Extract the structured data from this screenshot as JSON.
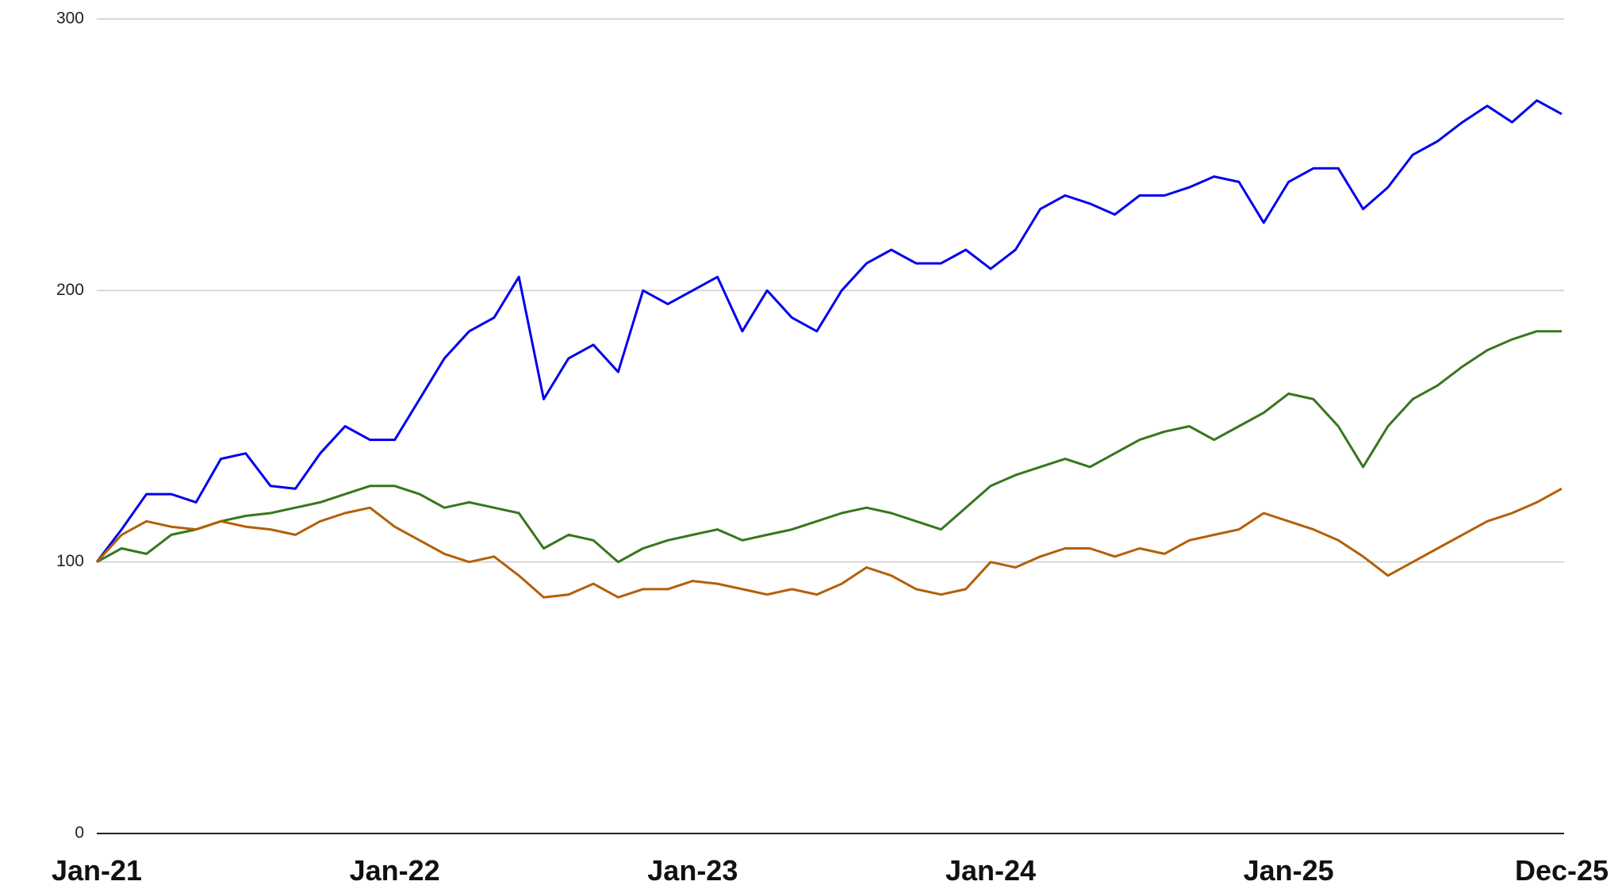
{
  "chart_data": {
    "type": "line",
    "categories": [
      "Jan-21",
      null,
      null,
      null,
      null,
      null,
      null,
      null,
      null,
      null,
      null,
      null,
      "Jan-22",
      null,
      null,
      null,
      null,
      null,
      null,
      null,
      null,
      null,
      null,
      null,
      "Jan-23",
      null,
      null,
      null,
      null,
      null,
      null,
      null,
      null,
      null,
      null,
      null,
      "Jan-24",
      null,
      null,
      null,
      null,
      null,
      null,
      null,
      null,
      null,
      null,
      null,
      "Jan-25",
      null,
      null,
      null,
      null,
      null,
      null,
      null,
      null,
      null,
      null,
      "Dec-25"
    ],
    "series": [
      {
        "color": "#0000ee",
        "values": [
          100,
          112,
          125,
          125,
          122,
          138,
          140,
          128,
          127,
          140,
          150,
          145,
          145,
          160,
          175,
          185,
          190,
          205,
          160,
          175,
          180,
          170,
          200,
          195,
          200,
          205,
          185,
          200,
          190,
          185,
          200,
          210,
          215,
          210,
          210,
          215,
          208,
          215,
          230,
          235,
          232,
          228,
          235,
          235,
          238,
          242,
          240,
          225,
          240,
          245,
          245,
          230,
          238,
          250,
          255,
          262,
          268,
          262,
          270,
          265
        ]
      },
      {
        "color": "#38761d",
        "values": [
          100,
          105,
          103,
          110,
          112,
          115,
          117,
          118,
          120,
          122,
          125,
          128,
          128,
          125,
          120,
          122,
          120,
          118,
          105,
          110,
          108,
          100,
          105,
          108,
          110,
          112,
          108,
          110,
          112,
          115,
          118,
          120,
          118,
          115,
          112,
          120,
          128,
          132,
          135,
          138,
          135,
          140,
          145,
          148,
          150,
          145,
          150,
          155,
          162,
          160,
          150,
          135,
          150,
          160,
          165,
          172,
          178,
          182,
          185,
          185
        ]
      },
      {
        "color": "#b45f06",
        "values": [
          100,
          110,
          115,
          113,
          112,
          115,
          113,
          112,
          110,
          115,
          118,
          120,
          113,
          108,
          103,
          100,
          102,
          95,
          87,
          88,
          92,
          87,
          90,
          90,
          93,
          92,
          90,
          88,
          90,
          88,
          92,
          98,
          95,
          90,
          88,
          90,
          100,
          98,
          102,
          105,
          105,
          102,
          105,
          103,
          108,
          110,
          112,
          118,
          115,
          112,
          108,
          102,
          95,
          100,
          105,
          110,
          115,
          118,
          122,
          127
        ]
      }
    ],
    "ylim": [
      0,
      300
    ],
    "yticks": [
      0,
      100,
      200,
      300
    ],
    "grid": true
  }
}
